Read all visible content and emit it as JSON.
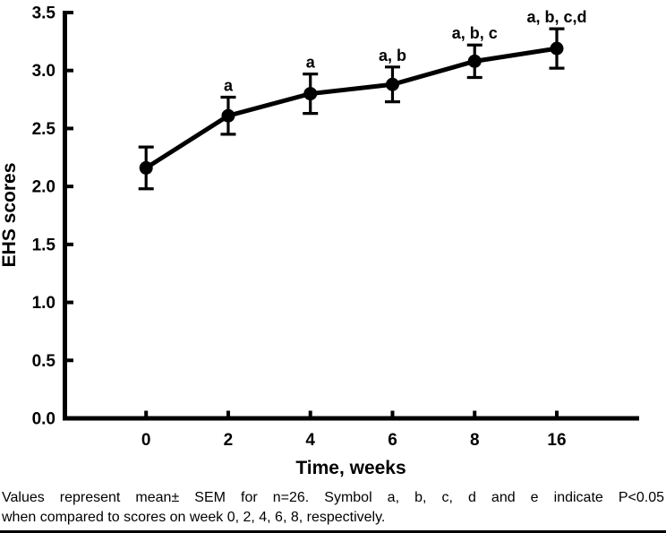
{
  "caption": {
    "line1": "Values represent mean± SEM for n=26. Symbol a, b, c, d and e indicate P<0.05",
    "line2": "when compared to scores on week 0, 2, 4, 6, 8, respectively."
  },
  "chart_data": {
    "type": "line",
    "title": "",
    "xlabel": "Time, weeks",
    "ylabel": "EHS scores",
    "categories": [
      "0",
      "2",
      "4",
      "6",
      "8",
      "16"
    ],
    "series": [
      {
        "name": "EHS scores (mean ± SEM)",
        "values": [
          2.16,
          2.61,
          2.8,
          2.88,
          3.08,
          3.19
        ],
        "sem": [
          0.18,
          0.16,
          0.17,
          0.15,
          0.14,
          0.17
        ]
      }
    ],
    "annotations": [
      "",
      "a",
      "a",
      "a, b",
      "a, b, c",
      "a, b, c,d"
    ],
    "ylim": [
      0,
      3.5
    ],
    "ytick_labels": [
      "0.0",
      "0.5",
      "1.0",
      "1.5",
      "2.0",
      "2.5",
      "3.0",
      "3.5"
    ],
    "grid": false,
    "legend": "none",
    "marker": "filled-circle",
    "line_color": "#000000",
    "background_color": "#ffffff"
  }
}
